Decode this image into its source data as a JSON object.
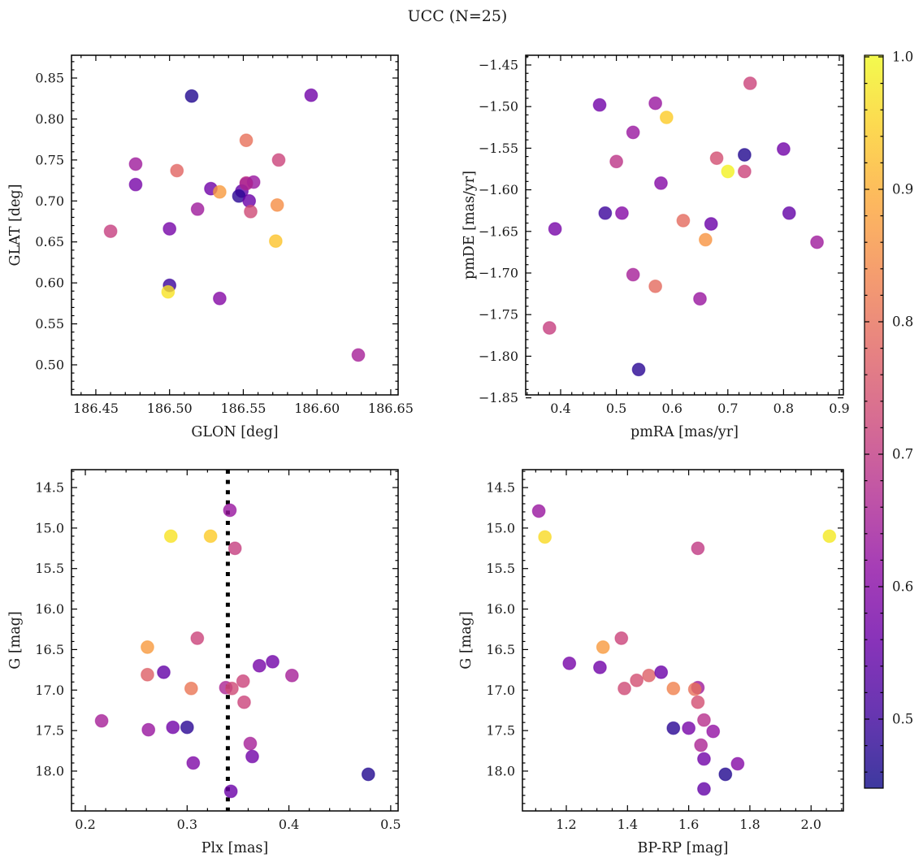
{
  "title": "UCC (N=25)",
  "colorbar": {
    "range": [
      0.45,
      1.0
    ],
    "tick_values": [
      1.0,
      0.9,
      0.8,
      0.7,
      0.6,
      0.5
    ],
    "tick_labels": [
      "1.0",
      "0.9",
      "0.8",
      "0.7",
      "0.6",
      "0.5"
    ],
    "minor_step": 0.02,
    "colormap": "plasma",
    "colormap_hex": [
      "#0d0887",
      "#41049d",
      "#6a00a8",
      "#8f0da4",
      "#b12a90",
      "#cc4778",
      "#e16462",
      "#f2844b",
      "#fca636",
      "#fcce25",
      "#f0f921"
    ]
  },
  "chart_data": [
    {
      "id": "glon-glat",
      "type": "scatter",
      "xlabel": "GLON [deg]",
      "ylabel": "GLAT [deg]",
      "xlim": [
        186.4335,
        186.655
      ],
      "ylim": [
        0.4633,
        0.8778
      ],
      "y_inverted": false,
      "xticks": [
        186.45,
        186.5,
        186.55,
        186.6,
        186.65
      ],
      "xtick_labels": [
        "186.45",
        "186.50",
        "186.55",
        "186.60",
        "186.65"
      ],
      "yticks": [
        0.85,
        0.8,
        0.75,
        0.7,
        0.65,
        0.6,
        0.55,
        0.5
      ],
      "ytick_labels": [
        "0.85",
        "0.80",
        "0.75",
        "0.70",
        "0.65",
        "0.60",
        "0.55",
        "0.50"
      ],
      "x_minor_step": 0.01,
      "y_minor_step": 0.01,
      "points": [
        {
          "x": 186.515,
          "y": 0.828,
          "v": 0.47
        },
        {
          "x": 186.596,
          "y": 0.829,
          "v": 0.57
        },
        {
          "x": 186.552,
          "y": 0.774,
          "v": 0.8
        },
        {
          "x": 186.574,
          "y": 0.75,
          "v": 0.72
        },
        {
          "x": 186.477,
          "y": 0.745,
          "v": 0.64
        },
        {
          "x": 186.505,
          "y": 0.737,
          "v": 0.78
        },
        {
          "x": 186.477,
          "y": 0.72,
          "v": 0.58
        },
        {
          "x": 186.528,
          "y": 0.715,
          "v": 0.57
        },
        {
          "x": 186.534,
          "y": 0.711,
          "v": 0.87
        },
        {
          "x": 186.552,
          "y": 0.722,
          "v": 0.7
        },
        {
          "x": 186.557,
          "y": 0.723,
          "v": 0.63
        },
        {
          "x": 186.549,
          "y": 0.712,
          "v": 0.55
        },
        {
          "x": 186.547,
          "y": 0.706,
          "v": 0.48
        },
        {
          "x": 186.554,
          "y": 0.7,
          "v": 0.56
        },
        {
          "x": 186.573,
          "y": 0.695,
          "v": 0.85
        },
        {
          "x": 186.555,
          "y": 0.687,
          "v": 0.73
        },
        {
          "x": 186.519,
          "y": 0.69,
          "v": 0.64
        },
        {
          "x": 186.5,
          "y": 0.666,
          "v": 0.58
        },
        {
          "x": 186.46,
          "y": 0.663,
          "v": 0.71
        },
        {
          "x": 186.572,
          "y": 0.651,
          "v": 0.93
        },
        {
          "x": 186.5,
          "y": 0.597,
          "v": 0.5
        },
        {
          "x": 186.499,
          "y": 0.589,
          "v": 0.97
        },
        {
          "x": 186.534,
          "y": 0.581,
          "v": 0.6
        },
        {
          "x": 186.628,
          "y": 0.512,
          "v": 0.65
        },
        {
          "x": 186.552,
          "y": 0.721,
          "v": 0.66
        }
      ]
    },
    {
      "id": "pmra-pmde",
      "type": "scatter",
      "xlabel": "pmRA [mas/yr]",
      "ylabel": "pmDE [mas/yr]",
      "xlim": [
        0.3373,
        0.9073
      ],
      "ylim": [
        -1.8465,
        -1.4383
      ],
      "y_inverted": false,
      "xticks": [
        0.4,
        0.5,
        0.6,
        0.7,
        0.8,
        0.9
      ],
      "xtick_labels": [
        "0.4",
        "0.5",
        "0.6",
        "0.7",
        "0.8",
        "0.9"
      ],
      "yticks": [
        -1.45,
        -1.5,
        -1.55,
        -1.6,
        -1.65,
        -1.7,
        -1.75,
        -1.8,
        -1.85
      ],
      "ytick_labels": [
        "−1.45",
        "−1.50",
        "−1.55",
        "−1.60",
        "−1.65",
        "−1.70",
        "−1.75",
        "−1.80",
        "−1.85"
      ],
      "x_minor_step": 0.02,
      "y_minor_step": 0.01,
      "points": [
        {
          "x": 0.74,
          "y": -1.472,
          "v": 0.72
        },
        {
          "x": 0.47,
          "y": -1.498,
          "v": 0.57
        },
        {
          "x": 0.57,
          "y": -1.496,
          "v": 0.63
        },
        {
          "x": 0.59,
          "y": -1.513,
          "v": 0.94
        },
        {
          "x": 0.53,
          "y": -1.531,
          "v": 0.63
        },
        {
          "x": 0.5,
          "y": -1.566,
          "v": 0.69
        },
        {
          "x": 0.73,
          "y": -1.558,
          "v": 0.47
        },
        {
          "x": 0.8,
          "y": -1.551,
          "v": 0.57
        },
        {
          "x": 0.68,
          "y": -1.562,
          "v": 0.74
        },
        {
          "x": 0.7,
          "y": -1.578,
          "v": 0.99
        },
        {
          "x": 0.73,
          "y": -1.578,
          "v": 0.72
        },
        {
          "x": 0.58,
          "y": -1.592,
          "v": 0.6
        },
        {
          "x": 0.48,
          "y": -1.628,
          "v": 0.5
        },
        {
          "x": 0.51,
          "y": -1.628,
          "v": 0.6
        },
        {
          "x": 0.39,
          "y": -1.647,
          "v": 0.58
        },
        {
          "x": 0.62,
          "y": -1.637,
          "v": 0.79
        },
        {
          "x": 0.67,
          "y": -1.641,
          "v": 0.56
        },
        {
          "x": 0.66,
          "y": -1.66,
          "v": 0.86
        },
        {
          "x": 0.81,
          "y": -1.628,
          "v": 0.55
        },
        {
          "x": 0.86,
          "y": -1.663,
          "v": 0.64
        },
        {
          "x": 0.53,
          "y": -1.702,
          "v": 0.65
        },
        {
          "x": 0.57,
          "y": -1.716,
          "v": 0.79
        },
        {
          "x": 0.65,
          "y": -1.731,
          "v": 0.63
        },
        {
          "x": 0.38,
          "y": -1.766,
          "v": 0.71
        },
        {
          "x": 0.54,
          "y": -1.816,
          "v": 0.48
        }
      ]
    },
    {
      "id": "plx-g",
      "type": "scatter",
      "xlabel": "Plx [mas]",
      "ylabel": "G [mag]",
      "xlim": [
        0.1864,
        0.5073
      ],
      "ylim": [
        14.279,
        18.492
      ],
      "y_inverted": true,
      "vline_x": 0.34,
      "xticks": [
        0.2,
        0.3,
        0.4,
        0.5
      ],
      "xtick_labels": [
        "0.2",
        "0.3",
        "0.4",
        "0.5"
      ],
      "yticks": [
        14.5,
        15.0,
        15.5,
        16.0,
        16.5,
        17.0,
        17.5,
        18.0
      ],
      "ytick_labels": [
        "14.5",
        "15.0",
        "15.5",
        "16.0",
        "16.5",
        "17.0",
        "17.5",
        "18.0"
      ],
      "x_minor_step": 0.02,
      "y_minor_step": 0.1,
      "points": [
        {
          "x": 0.342,
          "y": 14.78,
          "v": 0.63
        },
        {
          "x": 0.284,
          "y": 15.1,
          "v": 0.97
        },
        {
          "x": 0.323,
          "y": 15.1,
          "v": 0.94
        },
        {
          "x": 0.347,
          "y": 15.25,
          "v": 0.71
        },
        {
          "x": 0.31,
          "y": 16.36,
          "v": 0.72
        },
        {
          "x": 0.261,
          "y": 16.47,
          "v": 0.87
        },
        {
          "x": 0.261,
          "y": 16.81,
          "v": 0.77
        },
        {
          "x": 0.277,
          "y": 16.78,
          "v": 0.55
        },
        {
          "x": 0.304,
          "y": 16.98,
          "v": 0.81
        },
        {
          "x": 0.338,
          "y": 16.97,
          "v": 0.66
        },
        {
          "x": 0.344,
          "y": 16.98,
          "v": 0.73
        },
        {
          "x": 0.355,
          "y": 16.89,
          "v": 0.72
        },
        {
          "x": 0.356,
          "y": 17.15,
          "v": 0.72
        },
        {
          "x": 0.371,
          "y": 16.7,
          "v": 0.58
        },
        {
          "x": 0.384,
          "y": 16.65,
          "v": 0.57
        },
        {
          "x": 0.403,
          "y": 16.82,
          "v": 0.65
        },
        {
          "x": 0.216,
          "y": 17.38,
          "v": 0.65
        },
        {
          "x": 0.262,
          "y": 17.49,
          "v": 0.63
        },
        {
          "x": 0.286,
          "y": 17.46,
          "v": 0.57
        },
        {
          "x": 0.3,
          "y": 17.46,
          "v": 0.48
        },
        {
          "x": 0.362,
          "y": 17.66,
          "v": 0.65
        },
        {
          "x": 0.364,
          "y": 17.82,
          "v": 0.57
        },
        {
          "x": 0.306,
          "y": 17.9,
          "v": 0.59
        },
        {
          "x": 0.478,
          "y": 18.04,
          "v": 0.47
        },
        {
          "x": 0.343,
          "y": 18.25,
          "v": 0.56
        }
      ]
    },
    {
      "id": "bprp-g",
      "type": "scatter",
      "xlabel": "BP-RP [mag]",
      "ylabel": "G [mag]",
      "xlim": [
        1.0566,
        2.1056
      ],
      "ylim": [
        14.279,
        18.492
      ],
      "y_inverted": true,
      "xticks": [
        1.2,
        1.4,
        1.6,
        1.8,
        2.0
      ],
      "xtick_labels": [
        "1.2",
        "1.4",
        "1.6",
        "1.8",
        "2.0"
      ],
      "yticks": [
        14.5,
        15.0,
        15.5,
        16.0,
        16.5,
        17.0,
        17.5,
        18.0
      ],
      "ytick_labels": [
        "14.5",
        "15.0",
        "15.5",
        "16.0",
        "16.5",
        "17.0",
        "17.5",
        "18.0"
      ],
      "x_minor_step": 0.05,
      "y_minor_step": 0.1,
      "points": [
        {
          "x": 1.11,
          "y": 14.79,
          "v": 0.63
        },
        {
          "x": 1.13,
          "y": 15.11,
          "v": 0.96
        },
        {
          "x": 1.63,
          "y": 15.25,
          "v": 0.7
        },
        {
          "x": 2.06,
          "y": 15.1,
          "v": 0.98
        },
        {
          "x": 1.38,
          "y": 16.36,
          "v": 0.72
        },
        {
          "x": 1.32,
          "y": 16.47,
          "v": 0.87
        },
        {
          "x": 1.21,
          "y": 16.67,
          "v": 0.58
        },
        {
          "x": 1.31,
          "y": 16.72,
          "v": 0.57
        },
        {
          "x": 1.39,
          "y": 16.98,
          "v": 0.73
        },
        {
          "x": 1.43,
          "y": 16.88,
          "v": 0.74
        },
        {
          "x": 1.47,
          "y": 16.82,
          "v": 0.77
        },
        {
          "x": 1.51,
          "y": 16.78,
          "v": 0.56
        },
        {
          "x": 1.55,
          "y": 16.98,
          "v": 0.83
        },
        {
          "x": 1.63,
          "y": 16.97,
          "v": 0.64
        },
        {
          "x": 1.63,
          "y": 17.15,
          "v": 0.74
        },
        {
          "x": 1.65,
          "y": 17.37,
          "v": 0.68
        },
        {
          "x": 1.55,
          "y": 17.47,
          "v": 0.48
        },
        {
          "x": 1.6,
          "y": 17.47,
          "v": 0.58
        },
        {
          "x": 1.68,
          "y": 17.51,
          "v": 0.62
        },
        {
          "x": 1.64,
          "y": 17.68,
          "v": 0.66
        },
        {
          "x": 1.65,
          "y": 17.85,
          "v": 0.57
        },
        {
          "x": 1.76,
          "y": 17.91,
          "v": 0.6
        },
        {
          "x": 1.72,
          "y": 18.04,
          "v": 0.47
        },
        {
          "x": 1.65,
          "y": 18.22,
          "v": 0.55
        },
        {
          "x": 1.62,
          "y": 16.99,
          "v": 0.8
        }
      ]
    }
  ]
}
